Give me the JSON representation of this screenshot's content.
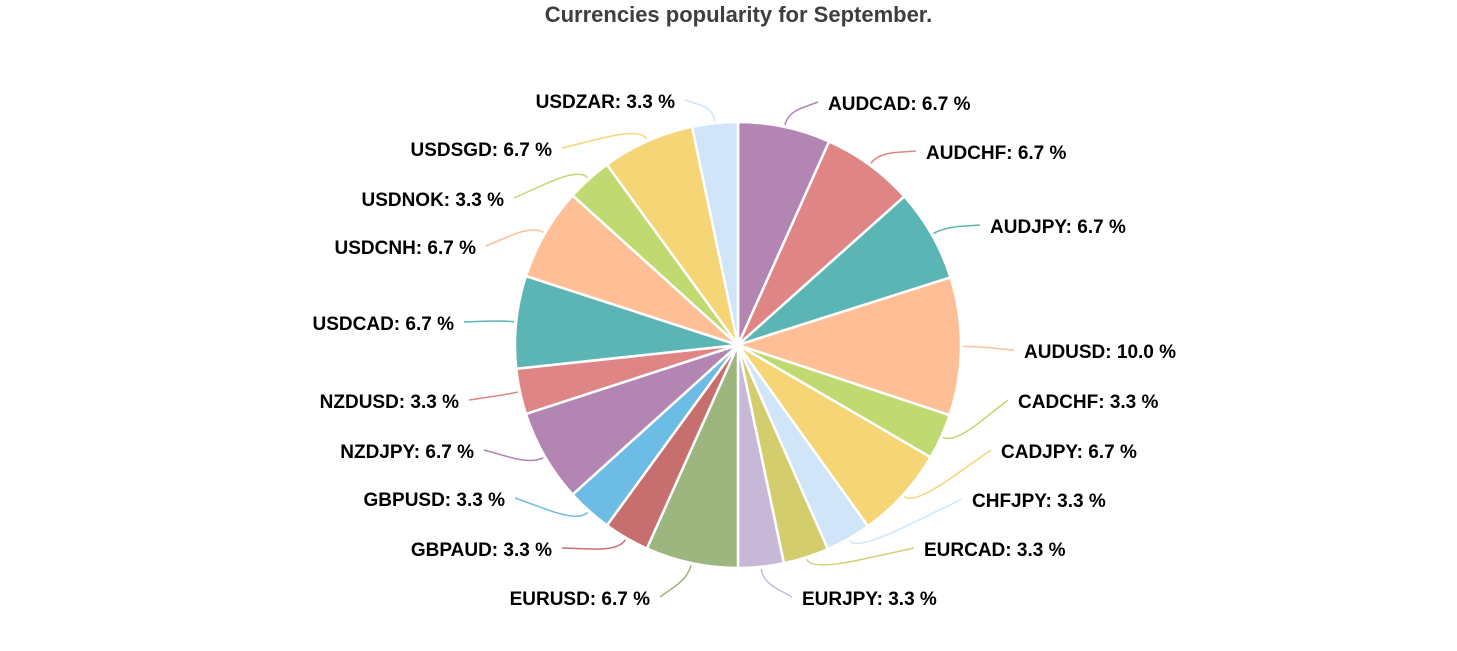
{
  "chart_data": {
    "type": "pie",
    "title": "Currencies popularity for September.",
    "value_suffix": " %",
    "slices": [
      {
        "label": "AUDCAD",
        "value": 6.7,
        "display": "6.7",
        "color": "#b385b3"
      },
      {
        "label": "AUDCHF",
        "value": 6.7,
        "display": "6.7",
        "color": "#e08585"
      },
      {
        "label": "AUDJPY",
        "value": 6.7,
        "display": "6.7",
        "color": "#5bb5b5"
      },
      {
        "label": "AUDUSD",
        "value": 10.0,
        "display": "10.0",
        "color": "#ffbf96"
      },
      {
        "label": "CADCHF",
        "value": 3.3,
        "display": "3.3",
        "color": "#c0d970"
      },
      {
        "label": "CADJPY",
        "value": 6.7,
        "display": "6.7",
        "color": "#f5d575"
      },
      {
        "label": "CHFJPY",
        "value": 3.3,
        "display": "3.3",
        "color": "#d0e5f8"
      },
      {
        "label": "EURCAD",
        "value": 3.3,
        "display": "3.3",
        "color": "#d4cd6e"
      },
      {
        "label": "EURJPY",
        "value": 3.3,
        "display": "3.3",
        "color": "#c8b8d8"
      },
      {
        "label": "EURUSD",
        "value": 6.7,
        "display": "6.7",
        "color": "#9db57e"
      },
      {
        "label": "GBPAUD",
        "value": 3.3,
        "display": "3.3",
        "color": "#c76f6f"
      },
      {
        "label": "GBPUSD",
        "value": 3.3,
        "display": "3.3",
        "color": "#6dbce6"
      },
      {
        "label": "NZDJPY",
        "value": 6.7,
        "display": "6.7",
        "color": "#b385b3"
      },
      {
        "label": "NZDUSD",
        "value": 3.3,
        "display": "3.3",
        "color": "#e08585"
      },
      {
        "label": "USDCAD",
        "value": 6.7,
        "display": "6.7",
        "color": "#5bb5b5"
      },
      {
        "label": "USDCNH",
        "value": 6.7,
        "display": "6.7",
        "color": "#ffbf96"
      },
      {
        "label": "USDNOK",
        "value": 3.3,
        "display": "3.3",
        "color": "#c0d970"
      },
      {
        "label": "USDSGD",
        "value": 6.7,
        "display": "6.7",
        "color": "#f5d575"
      },
      {
        "label": "USDZAR",
        "value": 3.3,
        "display": "3.3",
        "color": "#d0e5f8"
      }
    ]
  }
}
